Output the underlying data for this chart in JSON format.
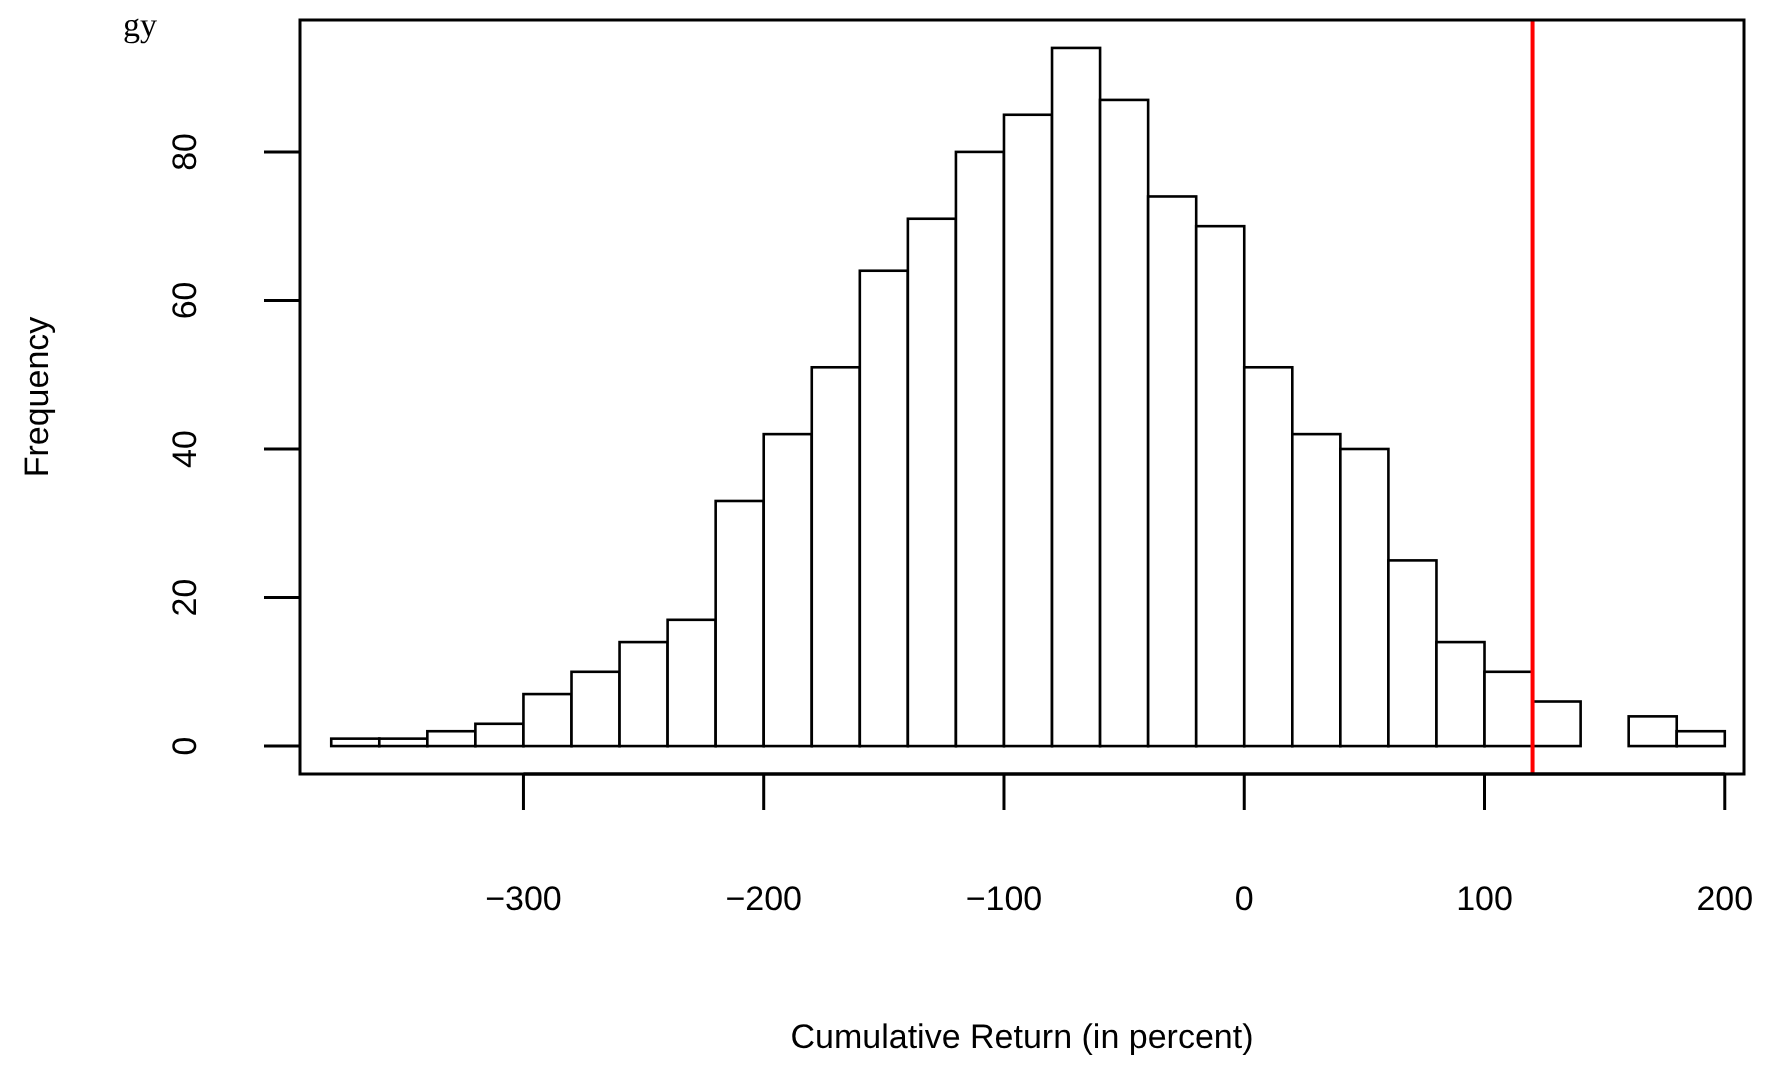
{
  "chart_data": {
    "type": "histogram",
    "title": "gy",
    "xlabel": "Cumulative Return (in percent)",
    "ylabel": "Frequency",
    "bins": [
      -380,
      -360,
      -340,
      -320,
      -300,
      -280,
      -260,
      -240,
      -220,
      -200,
      -180,
      -160,
      -140,
      -120,
      -100,
      -80,
      -60,
      -40,
      -20,
      0,
      20,
      40,
      60,
      80,
      100,
      120,
      140,
      160,
      180,
      200
    ],
    "values": [
      1,
      1,
      2,
      3,
      7,
      10,
      14,
      17,
      33,
      42,
      51,
      64,
      71,
      80,
      85,
      94,
      87,
      74,
      70,
      51,
      42,
      40,
      25,
      14,
      10,
      6,
      0,
      4,
      2
    ],
    "color": "#ffffff",
    "xlim": [
      -393,
      208
    ],
    "xticks": [
      -300,
      -200,
      -100,
      0,
      100,
      200
    ],
    "ylim": [
      -3.76,
      97.76
    ],
    "yticks": [
      0,
      20,
      40,
      60,
      80
    ],
    "ref_lines": [
      {
        "axis": "x",
        "value": 120,
        "color": "#ff0000"
      }
    ],
    "grid": false
  }
}
